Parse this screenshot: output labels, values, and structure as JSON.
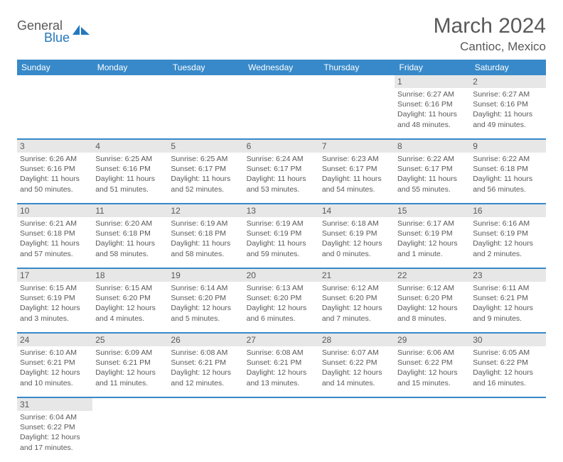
{
  "logo": {
    "general": "General",
    "blue": "Blue"
  },
  "title": "March 2024",
  "location": "Cantioc, Mexico",
  "colors": {
    "brand_blue": "#3789c9",
    "text_gray": "#595959",
    "row_gray": "#e7e7e7",
    "bg": "#ffffff"
  },
  "daysOfWeek": [
    "Sunday",
    "Monday",
    "Tuesday",
    "Wednesday",
    "Thursday",
    "Friday",
    "Saturday"
  ],
  "weeks": [
    [
      null,
      null,
      null,
      null,
      null,
      {
        "n": "1",
        "sr": "Sunrise: 6:27 AM",
        "ss": "Sunset: 6:16 PM",
        "d1": "Daylight: 11 hours",
        "d2": "and 48 minutes."
      },
      {
        "n": "2",
        "sr": "Sunrise: 6:27 AM",
        "ss": "Sunset: 6:16 PM",
        "d1": "Daylight: 11 hours",
        "d2": "and 49 minutes."
      }
    ],
    [
      {
        "n": "3",
        "sr": "Sunrise: 6:26 AM",
        "ss": "Sunset: 6:16 PM",
        "d1": "Daylight: 11 hours",
        "d2": "and 50 minutes."
      },
      {
        "n": "4",
        "sr": "Sunrise: 6:25 AM",
        "ss": "Sunset: 6:16 PM",
        "d1": "Daylight: 11 hours",
        "d2": "and 51 minutes."
      },
      {
        "n": "5",
        "sr": "Sunrise: 6:25 AM",
        "ss": "Sunset: 6:17 PM",
        "d1": "Daylight: 11 hours",
        "d2": "and 52 minutes."
      },
      {
        "n": "6",
        "sr": "Sunrise: 6:24 AM",
        "ss": "Sunset: 6:17 PM",
        "d1": "Daylight: 11 hours",
        "d2": "and 53 minutes."
      },
      {
        "n": "7",
        "sr": "Sunrise: 6:23 AM",
        "ss": "Sunset: 6:17 PM",
        "d1": "Daylight: 11 hours",
        "d2": "and 54 minutes."
      },
      {
        "n": "8",
        "sr": "Sunrise: 6:22 AM",
        "ss": "Sunset: 6:17 PM",
        "d1": "Daylight: 11 hours",
        "d2": "and 55 minutes."
      },
      {
        "n": "9",
        "sr": "Sunrise: 6:22 AM",
        "ss": "Sunset: 6:18 PM",
        "d1": "Daylight: 11 hours",
        "d2": "and 56 minutes."
      }
    ],
    [
      {
        "n": "10",
        "sr": "Sunrise: 6:21 AM",
        "ss": "Sunset: 6:18 PM",
        "d1": "Daylight: 11 hours",
        "d2": "and 57 minutes."
      },
      {
        "n": "11",
        "sr": "Sunrise: 6:20 AM",
        "ss": "Sunset: 6:18 PM",
        "d1": "Daylight: 11 hours",
        "d2": "and 58 minutes."
      },
      {
        "n": "12",
        "sr": "Sunrise: 6:19 AM",
        "ss": "Sunset: 6:18 PM",
        "d1": "Daylight: 11 hours",
        "d2": "and 58 minutes."
      },
      {
        "n": "13",
        "sr": "Sunrise: 6:19 AM",
        "ss": "Sunset: 6:19 PM",
        "d1": "Daylight: 11 hours",
        "d2": "and 59 minutes."
      },
      {
        "n": "14",
        "sr": "Sunrise: 6:18 AM",
        "ss": "Sunset: 6:19 PM",
        "d1": "Daylight: 12 hours",
        "d2": "and 0 minutes."
      },
      {
        "n": "15",
        "sr": "Sunrise: 6:17 AM",
        "ss": "Sunset: 6:19 PM",
        "d1": "Daylight: 12 hours",
        "d2": "and 1 minute."
      },
      {
        "n": "16",
        "sr": "Sunrise: 6:16 AM",
        "ss": "Sunset: 6:19 PM",
        "d1": "Daylight: 12 hours",
        "d2": "and 2 minutes."
      }
    ],
    [
      {
        "n": "17",
        "sr": "Sunrise: 6:15 AM",
        "ss": "Sunset: 6:19 PM",
        "d1": "Daylight: 12 hours",
        "d2": "and 3 minutes."
      },
      {
        "n": "18",
        "sr": "Sunrise: 6:15 AM",
        "ss": "Sunset: 6:20 PM",
        "d1": "Daylight: 12 hours",
        "d2": "and 4 minutes."
      },
      {
        "n": "19",
        "sr": "Sunrise: 6:14 AM",
        "ss": "Sunset: 6:20 PM",
        "d1": "Daylight: 12 hours",
        "d2": "and 5 minutes."
      },
      {
        "n": "20",
        "sr": "Sunrise: 6:13 AM",
        "ss": "Sunset: 6:20 PM",
        "d1": "Daylight: 12 hours",
        "d2": "and 6 minutes."
      },
      {
        "n": "21",
        "sr": "Sunrise: 6:12 AM",
        "ss": "Sunset: 6:20 PM",
        "d1": "Daylight: 12 hours",
        "d2": "and 7 minutes."
      },
      {
        "n": "22",
        "sr": "Sunrise: 6:12 AM",
        "ss": "Sunset: 6:20 PM",
        "d1": "Daylight: 12 hours",
        "d2": "and 8 minutes."
      },
      {
        "n": "23",
        "sr": "Sunrise: 6:11 AM",
        "ss": "Sunset: 6:21 PM",
        "d1": "Daylight: 12 hours",
        "d2": "and 9 minutes."
      }
    ],
    [
      {
        "n": "24",
        "sr": "Sunrise: 6:10 AM",
        "ss": "Sunset: 6:21 PM",
        "d1": "Daylight: 12 hours",
        "d2": "and 10 minutes."
      },
      {
        "n": "25",
        "sr": "Sunrise: 6:09 AM",
        "ss": "Sunset: 6:21 PM",
        "d1": "Daylight: 12 hours",
        "d2": "and 11 minutes."
      },
      {
        "n": "26",
        "sr": "Sunrise: 6:08 AM",
        "ss": "Sunset: 6:21 PM",
        "d1": "Daylight: 12 hours",
        "d2": "and 12 minutes."
      },
      {
        "n": "27",
        "sr": "Sunrise: 6:08 AM",
        "ss": "Sunset: 6:21 PM",
        "d1": "Daylight: 12 hours",
        "d2": "and 13 minutes."
      },
      {
        "n": "28",
        "sr": "Sunrise: 6:07 AM",
        "ss": "Sunset: 6:22 PM",
        "d1": "Daylight: 12 hours",
        "d2": "and 14 minutes."
      },
      {
        "n": "29",
        "sr": "Sunrise: 6:06 AM",
        "ss": "Sunset: 6:22 PM",
        "d1": "Daylight: 12 hours",
        "d2": "and 15 minutes."
      },
      {
        "n": "30",
        "sr": "Sunrise: 6:05 AM",
        "ss": "Sunset: 6:22 PM",
        "d1": "Daylight: 12 hours",
        "d2": "and 16 minutes."
      }
    ],
    [
      {
        "n": "31",
        "sr": "Sunrise: 6:04 AM",
        "ss": "Sunset: 6:22 PM",
        "d1": "Daylight: 12 hours",
        "d2": "and 17 minutes."
      },
      null,
      null,
      null,
      null,
      null,
      null
    ]
  ]
}
